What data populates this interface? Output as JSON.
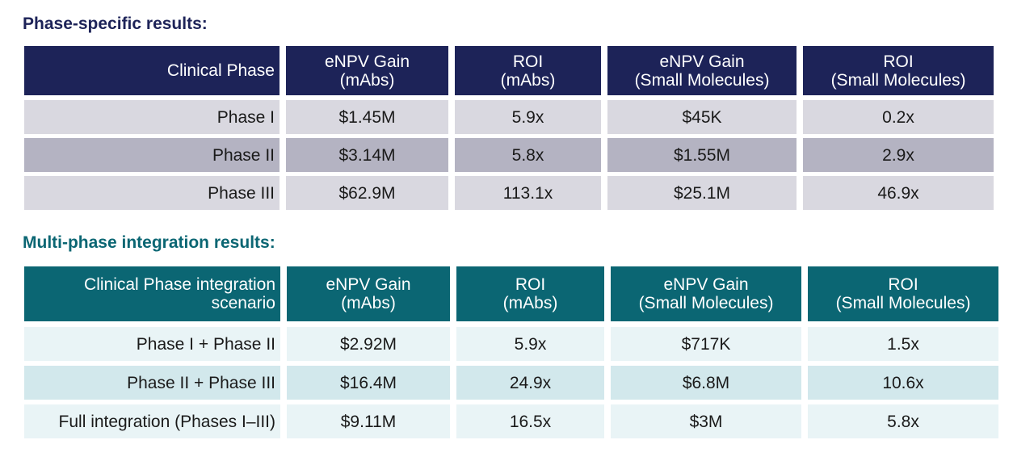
{
  "chart_data": [
    {
      "type": "table",
      "title": "Phase-specific results:",
      "columns": [
        "Clinical Phase",
        "eNPV Gain\n(mAbs)",
        "ROI\n(mAbs)",
        "eNPV Gain\n(Small Molecules)",
        "ROI\n(Small Molecules)"
      ],
      "rows": [
        [
          "Phase I",
          "$1.45M",
          "5.9x",
          "$45K",
          "0.2x"
        ],
        [
          "Phase II",
          "$3.14M",
          "5.8x",
          "$1.55M",
          "2.9x"
        ],
        [
          "Phase III",
          "$62.9M",
          "113.1x",
          "$25.1M",
          "46.9x"
        ]
      ],
      "header_color": "#1d2358",
      "row_colors": [
        "#d9d8e0",
        "#b4b3c2",
        "#d9d8e0"
      ]
    },
    {
      "type": "table",
      "title": "Multi-phase integration results:",
      "columns": [
        "Clinical Phase integration\nscenario",
        "eNPV Gain\n(mAbs)",
        "ROI\n(mAbs)",
        "eNPV Gain\n(Small Molecules)",
        "ROI\n(Small Molecules)"
      ],
      "rows": [
        [
          "Phase I + Phase II",
          "$2.92M",
          "5.9x",
          "$717K",
          "1.5x"
        ],
        [
          "Phase II + Phase III",
          "$16.4M",
          "24.9x",
          "$6.8M",
          "10.6x"
        ],
        [
          "Full integration (Phases I–III)",
          "$9.11M",
          "16.5x",
          "$3M",
          "5.8x"
        ]
      ],
      "header_color": "#0b6673",
      "row_colors": [
        "#e9f4f6",
        "#d2e8ec",
        "#e9f4f6"
      ]
    }
  ]
}
